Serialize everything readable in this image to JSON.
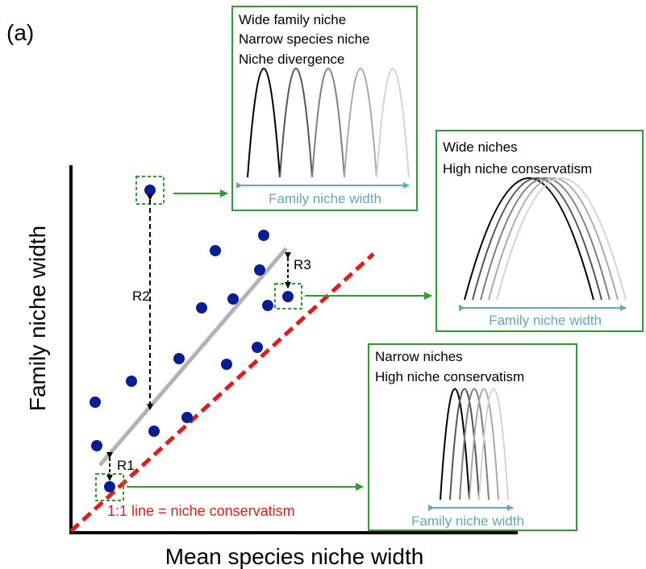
{
  "panel_label": "(a)",
  "axes": {
    "x_title": "Mean species niche width",
    "y_title": "Family niche width"
  },
  "one_to_one_line": {
    "label": "1:1 line = niche conservatism",
    "color": "#e41a1c"
  },
  "regression_line_color": "#b3b3b3",
  "point_color": "#0a1f8f",
  "highlight_color": "#2ca02c",
  "residuals": [
    "R1",
    "R2",
    "R3"
  ],
  "insets": [
    {
      "lines": [
        "Wide family niche",
        "Narrow species niche",
        "Niche divergence"
      ],
      "width_label": "Family niche width"
    },
    {
      "lines": [
        "Wide niches",
        "High niche conservatism"
      ],
      "width_label": "Family niche width"
    },
    {
      "lines": [
        "Narrow niches",
        "High niche conservatism"
      ],
      "width_label": "Family niche width"
    }
  ],
  "width_arrow_color": "#5fa9b8",
  "curve_shades": [
    "#000000",
    "#555555",
    "#7f7f7f",
    "#aaaaaa",
    "#d4d4d4"
  ]
}
